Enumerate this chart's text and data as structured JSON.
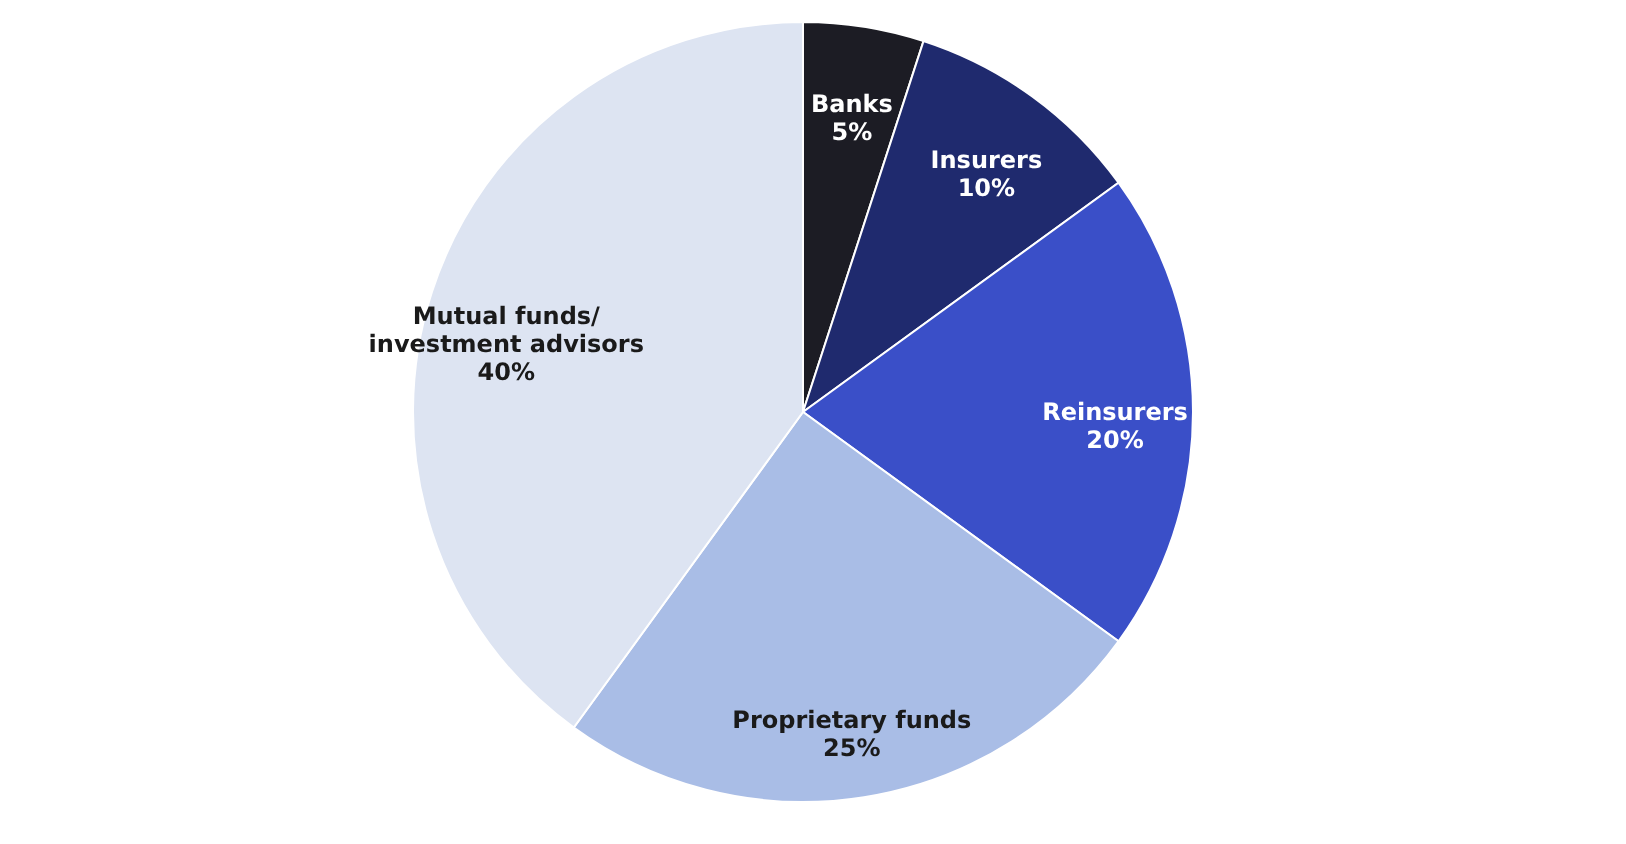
{
  "chart_data": {
    "type": "pie",
    "categories": [
      "Banks",
      "Insurers",
      "Reinsurers",
      "Proprietary funds",
      "Mutual funds/\ninvestment advisors"
    ],
    "values": [
      5,
      10,
      20,
      25,
      40
    ],
    "value_labels": [
      "5%",
      "10%",
      "20%",
      "25%",
      "40%"
    ],
    "colors": [
      "#1c1c24",
      "#1f2a6e",
      "#3a4fc8",
      "#a9bde6",
      "#dde4f2"
    ],
    "legend": false
  }
}
